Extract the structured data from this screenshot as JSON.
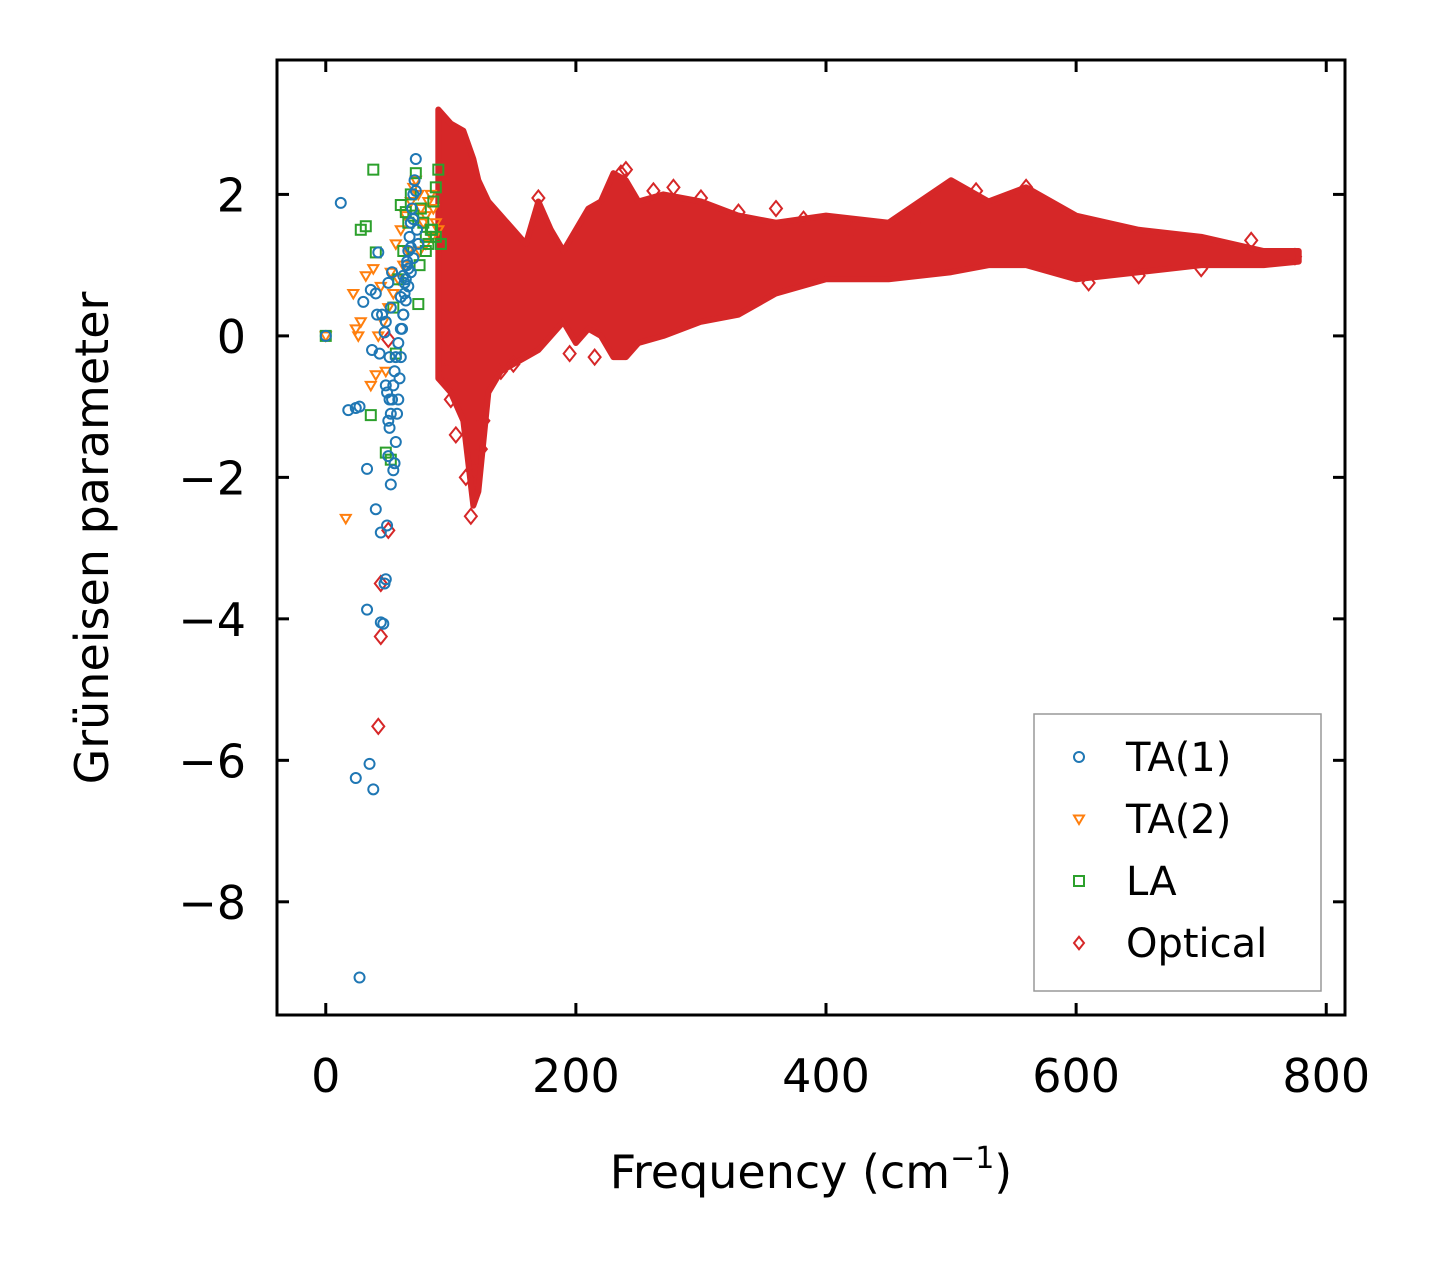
{
  "chart_data": {
    "type": "scatter",
    "title": "",
    "xlabel": "Frequency (cm",
    "xlabel_superscript": "−1",
    "xlabel_suffix": ")",
    "ylabel": "Grüneisen parameter",
    "xlim": [
      -39,
      815
    ],
    "ylim": [
      -9.6,
      3.9
    ],
    "xticks": [
      0,
      200,
      400,
      600,
      800
    ],
    "yticks": [
      -8,
      -6,
      -4,
      -2,
      0,
      2
    ],
    "xtick_labels": [
      "0",
      "200",
      "400",
      "600",
      "800"
    ],
    "ytick_labels": [
      "−8",
      "−6",
      "−4",
      "−2",
      "0",
      "2"
    ],
    "grid": false,
    "legend_position": "lower-right",
    "series": [
      {
        "name": "TA(1)",
        "marker": "circle",
        "color": "#1f77b4",
        "x": [
          0,
          12,
          18,
          24,
          24,
          27,
          27,
          30,
          33,
          33,
          35,
          36,
          37,
          38,
          40,
          40,
          41,
          42,
          43,
          44,
          44,
          45,
          46,
          47,
          47,
          48,
          48,
          49,
          50,
          50,
          51,
          51,
          52,
          52,
          53,
          54,
          55,
          56,
          57,
          58,
          59,
          60,
          61,
          62,
          63,
          64,
          65,
          66,
          67,
          68,
          69,
          70,
          71,
          72,
          73,
          74,
          70,
          68,
          66,
          64,
          62,
          60,
          58,
          56,
          55,
          54,
          53,
          52,
          51,
          50,
          49,
          48,
          60,
          62,
          65,
          68,
          70,
          72,
          66,
          63
        ],
        "y": [
          0,
          1.88,
          -1.05,
          -1.02,
          -6.25,
          -1.0,
          -9.07,
          0.48,
          -1.88,
          -3.87,
          -6.05,
          0.65,
          -0.2,
          -6.41,
          0.6,
          -2.45,
          0.3,
          1.18,
          -0.25,
          -2.78,
          -4.05,
          0.3,
          -4.07,
          -3.5,
          0.05,
          -3.44,
          -0.7,
          -2.68,
          0.75,
          -1.2,
          -0.9,
          -0.3,
          0.4,
          -2.1,
          0.9,
          -1.9,
          -1.8,
          -1.5,
          -1.1,
          -0.9,
          -0.6,
          -0.3,
          0.1,
          0.3,
          0.6,
          0.8,
          1.0,
          1.2,
          1.4,
          1.6,
          1.8,
          2.0,
          2.2,
          2.5,
          1.5,
          1.3,
          1.1,
          0.9,
          0.7,
          0.5,
          0.3,
          0.1,
          -0.1,
          -0.3,
          -0.5,
          -0.7,
          -0.9,
          -1.1,
          -1.3,
          -1.7,
          -0.8,
          0.2,
          0.55,
          0.85,
          1.05,
          1.25,
          1.65,
          2.05,
          0.95,
          0.75
        ]
      },
      {
        "name": "TA(2)",
        "marker": "triangle-down",
        "color": "#ff7f0e",
        "x": [
          0,
          16,
          22,
          24,
          26,
          28,
          32,
          36,
          38,
          40,
          44,
          48,
          52,
          56,
          60,
          64,
          68,
          70,
          72,
          74,
          76,
          78,
          80,
          82,
          84,
          86,
          88,
          90,
          66,
          62,
          58,
          54,
          50,
          46,
          42,
          85,
          80,
          75
        ],
        "y": [
          0,
          -2.58,
          0.6,
          0.1,
          0.0,
          0.2,
          0.85,
          -0.7,
          0.95,
          -0.55,
          0.7,
          -0.5,
          0.9,
          1.3,
          1.5,
          1.7,
          1.9,
          2.1,
          2.2,
          2.0,
          1.8,
          1.6,
          1.7,
          1.9,
          2.0,
          1.8,
          1.6,
          1.5,
          1.2,
          1.0,
          0.8,
          0.6,
          0.4,
          0.2,
          0.0,
          1.4,
          1.3,
          1.2
        ]
      },
      {
        "name": "LA",
        "marker": "square",
        "color": "#2ca02c",
        "x": [
          0,
          28,
          32,
          36,
          38,
          40,
          48,
          52,
          56,
          60,
          64,
          68,
          72,
          74,
          76,
          78,
          80,
          82,
          84,
          86,
          88,
          90,
          92,
          66,
          62,
          58,
          54,
          70,
          85,
          80,
          75,
          88
        ],
        "y": [
          0,
          1.5,
          1.55,
          -1.12,
          2.35,
          1.18,
          -1.65,
          -1.75,
          -0.25,
          1.85,
          1.75,
          2.0,
          2.3,
          0.45,
          1.8,
          1.6,
          1.4,
          1.3,
          1.5,
          1.9,
          2.1,
          2.35,
          1.3,
          1.6,
          1.2,
          0.8,
          0.4,
          1.7,
          1.5,
          1.2,
          1.0,
          1.4
        ]
      },
      {
        "name": "Optical",
        "marker": "diamond",
        "color": "#d62728",
        "envelope": [
          [
            90,
            -0.6,
            3.2
          ],
          [
            100,
            -0.8,
            3.0
          ],
          [
            110,
            -1.2,
            2.9
          ],
          [
            118,
            -2.4,
            2.5
          ],
          [
            122,
            -2.2,
            2.2
          ],
          [
            130,
            -0.8,
            1.9
          ],
          [
            140,
            -0.5,
            1.7
          ],
          [
            150,
            -0.4,
            1.5
          ],
          [
            160,
            -0.3,
            1.3
          ],
          [
            170,
            -0.2,
            1.9
          ],
          [
            180,
            0.0,
            1.5
          ],
          [
            190,
            0.2,
            1.2
          ],
          [
            200,
            -0.1,
            1.5
          ],
          [
            210,
            0.1,
            1.8
          ],
          [
            220,
            0.0,
            1.9
          ],
          [
            230,
            -0.3,
            2.3
          ],
          [
            240,
            -0.3,
            2.2
          ],
          [
            250,
            -0.1,
            1.9
          ],
          [
            270,
            0.0,
            2.0
          ],
          [
            300,
            0.2,
            1.9
          ],
          [
            330,
            0.3,
            1.7
          ],
          [
            360,
            0.6,
            1.6
          ],
          [
            400,
            0.8,
            1.7
          ],
          [
            450,
            0.8,
            1.6
          ],
          [
            500,
            0.9,
            2.2
          ],
          [
            530,
            1.0,
            1.9
          ],
          [
            560,
            1.0,
            2.1
          ],
          [
            600,
            0.8,
            1.7
          ],
          [
            650,
            0.9,
            1.5
          ],
          [
            700,
            1.0,
            1.4
          ],
          [
            750,
            1.0,
            1.2
          ],
          [
            778,
            1.05,
            1.2
          ]
        ],
        "outliers": {
          "x": [
            50,
            44,
            44,
            42,
            50,
            96,
            100,
            104,
            112,
            116,
            120,
            124,
            126,
            140,
            150,
            170,
            195,
            215,
            236,
            240,
            262,
            278,
            300,
            330,
            360,
            382,
            420,
            470,
            520,
            560,
            610,
            650,
            700,
            740,
            775
          ],
          "y": [
            -2.75,
            -3.5,
            -4.25,
            -5.52,
            -0.05,
            -0.5,
            -0.9,
            -1.4,
            -2.0,
            -2.55,
            -1.9,
            -1.6,
            -1.2,
            -0.5,
            -0.4,
            1.95,
            -0.25,
            -0.3,
            2.3,
            2.35,
            2.05,
            2.1,
            1.95,
            1.75,
            1.8,
            1.65,
            1.5,
            1.6,
            2.05,
            2.1,
            0.75,
            0.85,
            0.95,
            1.35,
            1.12
          ]
        }
      }
    ]
  }
}
